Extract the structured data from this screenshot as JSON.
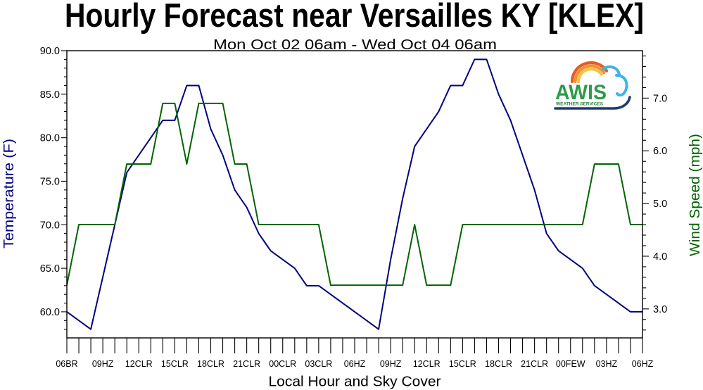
{
  "chart_data": {
    "type": "line",
    "title": "Hourly Forecast near Versailles KY [KLEX]",
    "subtitle": "Mon Oct 02 06am - Wed Oct 04 06am",
    "xlabel": "Local Hour and Sky Cover",
    "x_tick_labels": [
      "06BR",
      "09HZ",
      "12CLR",
      "15CLR",
      "18CLR",
      "21CLR",
      "00CLR",
      "03CLR",
      "06HZ",
      "09HZ",
      "12CLR",
      "15CLR",
      "18CLR",
      "21CLR",
      "00FEW",
      "03HZ",
      "06HZ"
    ],
    "grid": false,
    "y_left_ticks": [
      "60.0",
      "65.0",
      "70.0",
      "75.0",
      "80.0",
      "85.0",
      "90.0"
    ],
    "ylim_left": [
      57,
      90
    ],
    "y_right_ticks": [
      "3.0",
      "4.0",
      "5.0",
      "6.0",
      "7.0"
    ],
    "ylim_right": [
      2.45,
      7.9
    ],
    "series": [
      {
        "name": "Temperature (F)",
        "color": "#000080",
        "values": [
          60,
          59,
          58,
          64,
          70,
          76,
          78,
          80,
          82,
          82,
          86,
          86,
          81,
          78,
          74,
          72,
          69,
          67,
          66,
          65,
          63,
          63,
          62,
          61,
          60,
          59,
          58,
          66,
          73,
          79,
          81,
          83,
          86,
          86,
          89,
          89,
          85,
          82,
          78,
          74,
          69,
          67,
          66,
          65,
          63,
          62,
          61,
          60,
          60
        ]
      },
      {
        "name": "Wind Speed (mph)",
        "color": "#006400",
        "values": [
          3.45,
          4.6,
          4.6,
          4.6,
          4.6,
          5.75,
          5.75,
          5.75,
          6.9,
          6.9,
          5.75,
          6.9,
          6.9,
          6.9,
          5.75,
          5.75,
          4.6,
          4.6,
          4.6,
          4.6,
          4.6,
          4.6,
          3.45,
          3.45,
          3.45,
          3.45,
          3.45,
          3.45,
          3.45,
          4.6,
          3.45,
          3.45,
          3.45,
          4.6,
          4.6,
          4.6,
          4.6,
          4.6,
          4.6,
          4.6,
          4.6,
          4.6,
          4.6,
          4.6,
          5.75,
          5.75,
          5.75,
          4.6,
          4.6
        ]
      }
    ]
  },
  "logo": {
    "wordmark": "AWIS",
    "tagline": "WEATHER SERVICES"
  }
}
